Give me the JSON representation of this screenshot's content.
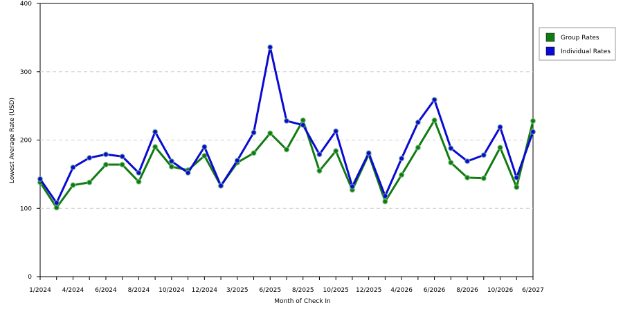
{
  "chart_data": {
    "type": "line",
    "x_label": "Month of Check In",
    "y_label": "Lowest Average Rate (USD)",
    "categories": [
      "1/2024",
      null,
      "4/2024",
      null,
      "6/2024",
      null,
      "8/2024",
      null,
      "10/2024",
      null,
      "12/2024",
      null,
      "3/2025",
      null,
      "6/2025",
      null,
      "8/2025",
      null,
      "10/2025",
      null,
      "12/2025",
      null,
      "4/2026",
      null,
      "6/2026",
      null,
      "8/2026",
      null,
      "10/2026",
      null,
      "6/2027"
    ],
    "series": [
      {
        "name": "Group Rates",
        "color": "#127a12",
        "values": [
          138,
          101,
          134,
          138,
          164,
          164,
          139,
          190,
          161,
          156,
          177,
          133,
          167,
          181,
          210,
          186,
          229,
          155,
          184,
          127,
          179,
          110,
          149,
          189,
          229,
          167,
          145,
          144,
          189,
          131,
          228
        ]
      },
      {
        "name": "Individual Rates",
        "color": "#0a0ad2",
        "values": [
          143,
          108,
          160,
          174,
          179,
          176,
          152,
          212,
          169,
          152,
          190,
          133,
          170,
          211,
          336,
          228,
          222,
          179,
          213,
          132,
          181,
          118,
          173,
          226,
          259,
          188,
          169,
          178,
          219,
          145,
          212
        ]
      }
    ],
    "ylim": [
      0,
      400
    ],
    "yticks": [
      0,
      100,
      200,
      300,
      400
    ],
    "grid": true,
    "legend": "right"
  }
}
